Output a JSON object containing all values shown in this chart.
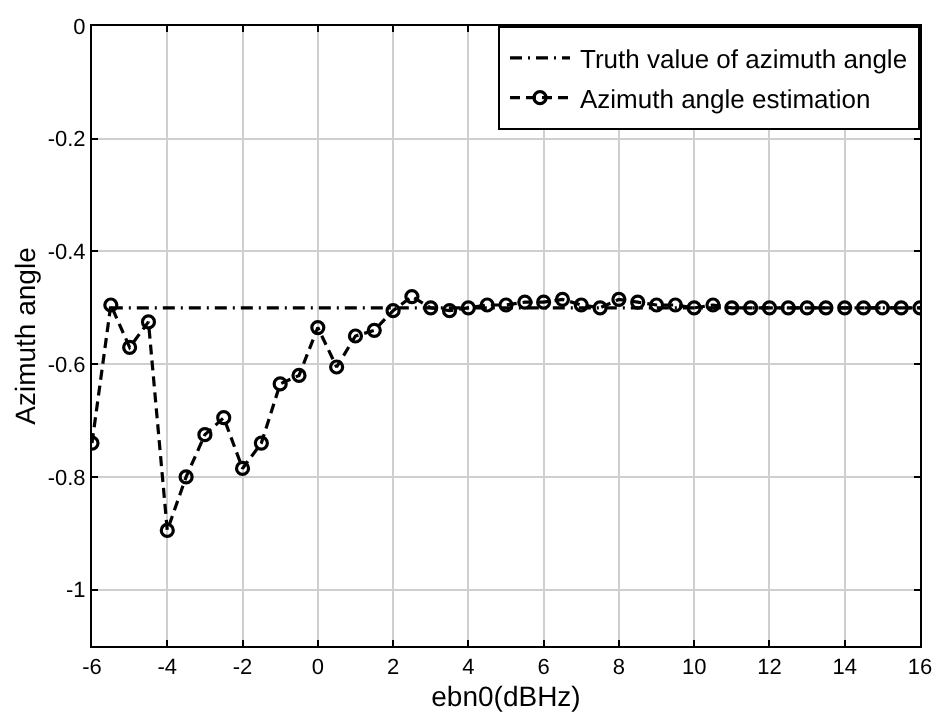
{
  "chart_data": {
    "type": "line",
    "xlabel": "ebn0(dBHz)",
    "ylabel": "Azimuth angle",
    "xlim": [
      -6,
      16
    ],
    "xticks": [
      -6,
      -4,
      -2,
      0,
      2,
      4,
      6,
      8,
      10,
      12,
      14,
      16
    ],
    "ylim": [
      -1.1,
      0
    ],
    "yticks": [
      -1,
      -0.8,
      -0.6,
      -0.4,
      -0.2,
      0
    ],
    "grid": true,
    "legend": "top right",
    "series": [
      {
        "name": "Truth value of azimuth angle",
        "color": "#000000",
        "x": [
          -5.5,
          16
        ],
        "values": [
          -0.5,
          -0.5
        ],
        "line_style": "dashdot"
      },
      {
        "name": "Azimuth angle estimation",
        "color": "#000000",
        "x": [
          -6,
          -5.5,
          -5,
          -4.5,
          -4,
          -3.5,
          -3,
          -2.5,
          -2,
          -1.5,
          -1,
          -0.5,
          0,
          0.5,
          1,
          1.5,
          2,
          2.5,
          3,
          3.5,
          4,
          4.5,
          5,
          5.5,
          6,
          6.5,
          7,
          7.5,
          8,
          8.5,
          9,
          9.5,
          10,
          10.5,
          11,
          11.5,
          12,
          12.5,
          13,
          13.5,
          14,
          14.5,
          15,
          15.5,
          16
        ],
        "values": [
          -0.74,
          -0.495,
          -0.57,
          -0.525,
          -0.895,
          -0.8,
          -0.725,
          -0.695,
          -0.785,
          -0.74,
          -0.635,
          -0.62,
          -0.535,
          -0.605,
          -0.55,
          -0.54,
          -0.505,
          -0.48,
          -0.5,
          -0.505,
          -0.5,
          -0.495,
          -0.495,
          -0.49,
          -0.49,
          -0.485,
          -0.495,
          -0.5,
          -0.485,
          -0.49,
          -0.495,
          -0.495,
          -0.5,
          -0.495,
          -0.5,
          -0.5,
          -0.5,
          -0.5,
          -0.5,
          -0.5,
          -0.5,
          -0.5,
          -0.5,
          -0.5,
          -0.5
        ],
        "line_style": "dashed",
        "marker": "circle"
      }
    ]
  }
}
